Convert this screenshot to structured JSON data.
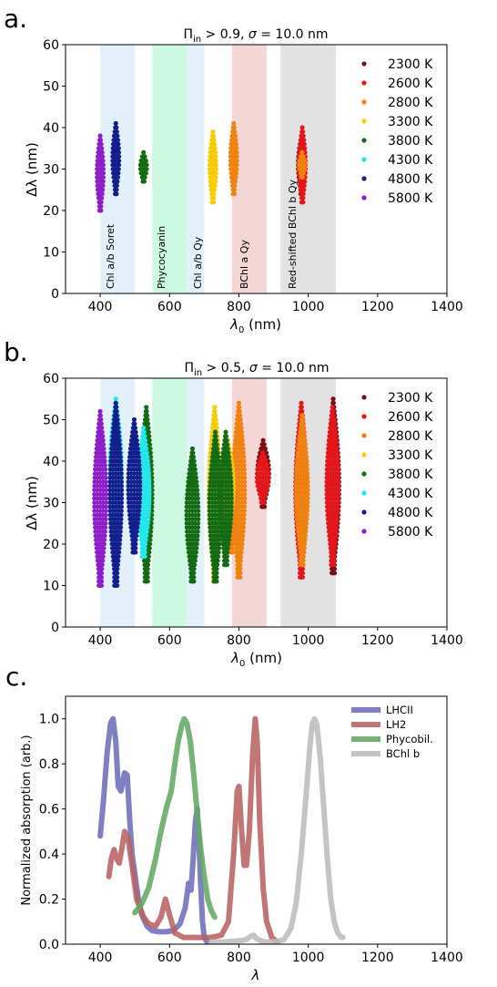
{
  "figure": {
    "panels": [
      {
        "letter": "a.",
        "title": "Π_in > 0.9, σ = 10.0 nm",
        "title_main": "Π",
        "title_sub": "in",
        "title_rest": " > 0.9, ",
        "title_sigma": "σ",
        "title_end": " = 10.0 nm",
        "xlabel_main": "λ",
        "xlabel_sub": "0",
        "xlabel_rest": " (nm)",
        "ylabel": "Δλ (nm)",
        "xticks": [
          "400",
          "600",
          "800",
          "1000",
          "1200",
          "1400"
        ],
        "yticks": [
          "0",
          "10",
          "20",
          "30",
          "40",
          "50",
          "60"
        ]
      },
      {
        "letter": "b.",
        "title": "Π_in > 0.5, σ = 10.0 nm",
        "title_main": "Π",
        "title_sub": "in",
        "title_rest": " > 0.5, ",
        "title_sigma": "σ",
        "title_end": " = 10.0 nm",
        "xlabel_main": "λ",
        "xlabel_sub": "0",
        "xlabel_rest": " (nm)",
        "ylabel": "Δλ (nm)",
        "xticks": [
          "400",
          "600",
          "800",
          "1000",
          "1200",
          "1400"
        ],
        "yticks": [
          "0",
          "10",
          "20",
          "30",
          "40",
          "50",
          "60"
        ]
      },
      {
        "letter": "c.",
        "xlabel": "λ",
        "ylabel": "Normalized absorption (arb.)",
        "xticks": [
          "400",
          "600",
          "800",
          "1000",
          "1200",
          "1400"
        ],
        "yticks": [
          "0.0",
          "0.2",
          "0.4",
          "0.6",
          "0.8",
          "1.0"
        ]
      }
    ],
    "band_labels": [
      "Chl a/b Soret",
      "Phycocyanin",
      "Chl a/b Qy",
      "BChl a Qy",
      "Red-shifted BChl b Qy"
    ]
  },
  "chart_data": [
    {
      "type": "scatter",
      "title": "Π_in > 0.9, σ = 10.0 nm",
      "xlabel": "λ_0 (nm)",
      "ylabel": "Δλ (nm)",
      "xlim": [
        300,
        1400
      ],
      "ylim": [
        0,
        60
      ],
      "grid": false,
      "legend_position": "right",
      "bands": [
        {
          "label": "Chl a/b Soret",
          "x0": 400,
          "x1": 500,
          "color": "#d6eaf8"
        },
        {
          "label": "Phycocyanin",
          "x0": 550,
          "x1": 650,
          "color": "#b8f5d6"
        },
        {
          "label": "Chl a/b Qy",
          "x0": 650,
          "x1": 700,
          "color": "#d6eaf8"
        },
        {
          "label": "BChl a Qy",
          "x0": 780,
          "x1": 880,
          "color": "#efc4c6"
        },
        {
          "label": "Red-shifted BChl b Qy",
          "x0": 920,
          "x1": 1080,
          "color": "#d5d5d5"
        }
      ],
      "series": [
        {
          "name": "2300 K",
          "color": "#7b0f17",
          "clusters": [
            {
              "x": 980,
              "ymin": 24,
              "ymax": 38
            }
          ]
        },
        {
          "name": "2600 K",
          "color": "#e4161a",
          "clusters": [
            {
              "x": 983,
              "ymin": 22,
              "ymax": 40
            }
          ]
        },
        {
          "name": "2800 K",
          "color": "#f0820f",
          "clusters": [
            {
              "x": 785,
              "ymin": 24,
              "ymax": 41
            },
            {
              "x": 982,
              "ymin": 28,
              "ymax": 34
            }
          ]
        },
        {
          "name": "3300 K",
          "color": "#f7cc07",
          "clusters": [
            {
              "x": 725,
              "ymin": 22,
              "ymax": 39
            }
          ]
        },
        {
          "name": "3800 K",
          "color": "#136b14",
          "clusters": [
            {
              "x": 525,
              "ymin": 27,
              "ymax": 34
            }
          ]
        },
        {
          "name": "4300 K",
          "color": "#22e8ee",
          "clusters": []
        },
        {
          "name": "4800 K",
          "color": "#131f8c",
          "clusters": [
            {
              "x": 445,
              "ymin": 24,
              "ymax": 41
            }
          ]
        },
        {
          "name": "5800 K",
          "color": "#8e1ec7",
          "clusters": [
            {
              "x": 400,
              "ymin": 20,
              "ymax": 38
            }
          ]
        }
      ]
    },
    {
      "type": "scatter",
      "title": "Π_in > 0.5, σ = 10.0 nm",
      "xlabel": "λ_0 (nm)",
      "ylabel": "Δλ (nm)",
      "xlim": [
        300,
        1400
      ],
      "ylim": [
        0,
        60
      ],
      "grid": false,
      "legend_position": "right",
      "bands": [
        {
          "label": "",
          "x0": 400,
          "x1": 500,
          "color": "#d6eaf8"
        },
        {
          "label": "",
          "x0": 550,
          "x1": 650,
          "color": "#b8f5d6"
        },
        {
          "label": "",
          "x0": 650,
          "x1": 700,
          "color": "#d6eaf8"
        },
        {
          "label": "",
          "x0": 780,
          "x1": 880,
          "color": "#efc4c6"
        },
        {
          "label": "",
          "x0": 920,
          "x1": 1080,
          "color": "#d5d5d5"
        }
      ],
      "series": [
        {
          "name": "2300 K",
          "color": "#7b0f17",
          "clusters": [
            {
              "x": 870,
              "ymin": 29,
              "ymax": 45
            },
            {
              "x": 1072,
              "ymin": 13,
              "ymax": 55
            }
          ]
        },
        {
          "name": "2600 K",
          "color": "#e4161a",
          "clusters": [
            {
              "x": 980,
              "ymin": 12,
              "ymax": 54
            },
            {
              "x": 1070,
              "ymin": 15,
              "ymax": 53
            },
            {
              "x": 869,
              "ymin": 30,
              "ymax": 42
            }
          ]
        },
        {
          "name": "2800 K",
          "color": "#f0820f",
          "clusters": [
            {
              "x": 800,
              "ymin": 12,
              "ymax": 54
            },
            {
              "x": 982,
              "ymin": 15,
              "ymax": 51
            },
            {
              "x": 778,
              "ymin": 18,
              "ymax": 40
            }
          ]
        },
        {
          "name": "3300 K",
          "color": "#f7cc07",
          "clusters": [
            {
              "x": 730,
              "ymin": 11,
              "ymax": 53
            },
            {
              "x": 768,
              "ymin": 23,
              "ymax": 45
            }
          ]
        },
        {
          "name": "3800 K",
          "color": "#136b14",
          "clusters": [
            {
              "x": 533,
              "ymin": 11,
              "ymax": 53
            },
            {
              "x": 666,
              "ymin": 11,
              "ymax": 43
            },
            {
              "x": 732,
              "ymin": 11,
              "ymax": 47
            },
            {
              "x": 762,
              "ymin": 15,
              "ymax": 47
            }
          ]
        },
        {
          "name": "4300 K",
          "color": "#22e8ee",
          "clusters": [
            {
              "x": 525,
              "ymin": 17,
              "ymax": 48
            },
            {
              "x": 445,
              "ymin": 20,
              "ymax": 55
            }
          ]
        },
        {
          "name": "4800 K",
          "color": "#131f8c",
          "clusters": [
            {
              "x": 445,
              "ymin": 10,
              "ymax": 54
            },
            {
              "x": 498,
              "ymin": 18,
              "ymax": 50
            }
          ]
        },
        {
          "name": "5800 K",
          "color": "#8e1ec7",
          "clusters": [
            {
              "x": 400,
              "ymin": 10,
              "ymax": 52
            }
          ]
        }
      ]
    },
    {
      "type": "line",
      "title": "",
      "xlabel": "λ",
      "ylabel": "Normalized absorption (arb.)",
      "xlim": [
        300,
        1400
      ],
      "ylim": [
        0,
        1.1
      ],
      "grid": false,
      "legend_position": "top-right",
      "series": [
        {
          "name": "LHCII",
          "color": "#6d6dba",
          "points": [
            [
              400,
              0.48
            ],
            [
              410,
              0.65
            ],
            [
              420,
              0.85
            ],
            [
              430,
              0.98
            ],
            [
              437,
              1.0
            ],
            [
              445,
              0.9
            ],
            [
              452,
              0.7
            ],
            [
              460,
              0.68
            ],
            [
              470,
              0.76
            ],
            [
              478,
              0.75
            ],
            [
              485,
              0.55
            ],
            [
              492,
              0.4
            ],
            [
              500,
              0.31
            ],
            [
              510,
              0.2
            ],
            [
              520,
              0.13
            ],
            [
              535,
              0.08
            ],
            [
              550,
              0.06
            ],
            [
              570,
              0.055
            ],
            [
              590,
              0.055
            ],
            [
              610,
              0.06
            ],
            [
              630,
              0.09
            ],
            [
              645,
              0.16
            ],
            [
              655,
              0.27
            ],
            [
              662,
              0.24
            ],
            [
              668,
              0.38
            ],
            [
              675,
              0.55
            ],
            [
              680,
              0.6
            ],
            [
              685,
              0.45
            ],
            [
              690,
              0.25
            ],
            [
              695,
              0.1
            ],
            [
              700,
              0.03
            ],
            [
              708,
              0.01
            ]
          ]
        },
        {
          "name": "LH2",
          "color": "#b86262",
          "points": [
            [
              425,
              0.3
            ],
            [
              432,
              0.38
            ],
            [
              440,
              0.42
            ],
            [
              447,
              0.38
            ],
            [
              455,
              0.36
            ],
            [
              462,
              0.42
            ],
            [
              470,
              0.5
            ],
            [
              480,
              0.47
            ],
            [
              492,
              0.35
            ],
            [
              505,
              0.2
            ],
            [
              515,
              0.16
            ],
            [
              525,
              0.12
            ],
            [
              540,
              0.09
            ],
            [
              560,
              0.08
            ],
            [
              575,
              0.12
            ],
            [
              588,
              0.2
            ],
            [
              600,
              0.13
            ],
            [
              615,
              0.05
            ],
            [
              640,
              0.03
            ],
            [
              680,
              0.03
            ],
            [
              720,
              0.03
            ],
            [
              750,
              0.04
            ],
            [
              770,
              0.1
            ],
            [
              785,
              0.4
            ],
            [
              795,
              0.68
            ],
            [
              800,
              0.7
            ],
            [
              808,
              0.5
            ],
            [
              815,
              0.35
            ],
            [
              822,
              0.35
            ],
            [
              830,
              0.5
            ],
            [
              840,
              0.85
            ],
            [
              847,
              1.0
            ],
            [
              853,
              0.9
            ],
            [
              860,
              0.55
            ],
            [
              870,
              0.25
            ],
            [
              880,
              0.1
            ],
            [
              895,
              0.03
            ],
            [
              910,
              0.01
            ]
          ]
        },
        {
          "name": "Phycobil.",
          "color": "#63aa63",
          "points": [
            [
              500,
              0.14
            ],
            [
              520,
              0.18
            ],
            [
              540,
              0.25
            ],
            [
              560,
              0.38
            ],
            [
              575,
              0.5
            ],
            [
              590,
              0.6
            ],
            [
              605,
              0.68
            ],
            [
              615,
              0.8
            ],
            [
              625,
              0.9
            ],
            [
              635,
              0.97
            ],
            [
              642,
              1.0
            ],
            [
              650,
              0.98
            ],
            [
              660,
              0.9
            ],
            [
              670,
              0.75
            ],
            [
              680,
              0.58
            ],
            [
              690,
              0.42
            ],
            [
              700,
              0.3
            ],
            [
              710,
              0.2
            ],
            [
              720,
              0.15
            ],
            [
              730,
              0.12
            ]
          ]
        },
        {
          "name": "BChl b",
          "color": "#bcbcbc",
          "points": [
            [
              720,
              0.01
            ],
            [
              760,
              0.01
            ],
            [
              800,
              0.015
            ],
            [
              820,
              0.02
            ],
            [
              835,
              0.035
            ],
            [
              842,
              0.04
            ],
            [
              850,
              0.025
            ],
            [
              870,
              0.01
            ],
            [
              900,
              0.01
            ],
            [
              930,
              0.02
            ],
            [
              950,
              0.07
            ],
            [
              965,
              0.18
            ],
            [
              980,
              0.4
            ],
            [
              995,
              0.68
            ],
            [
              1005,
              0.88
            ],
            [
              1012,
              0.98
            ],
            [
              1018,
              1.0
            ],
            [
              1025,
              0.97
            ],
            [
              1035,
              0.82
            ],
            [
              1045,
              0.6
            ],
            [
              1055,
              0.38
            ],
            [
              1065,
              0.2
            ],
            [
              1075,
              0.1
            ],
            [
              1085,
              0.05
            ],
            [
              1095,
              0.03
            ],
            [
              1100,
              0.03
            ]
          ]
        }
      ]
    }
  ]
}
